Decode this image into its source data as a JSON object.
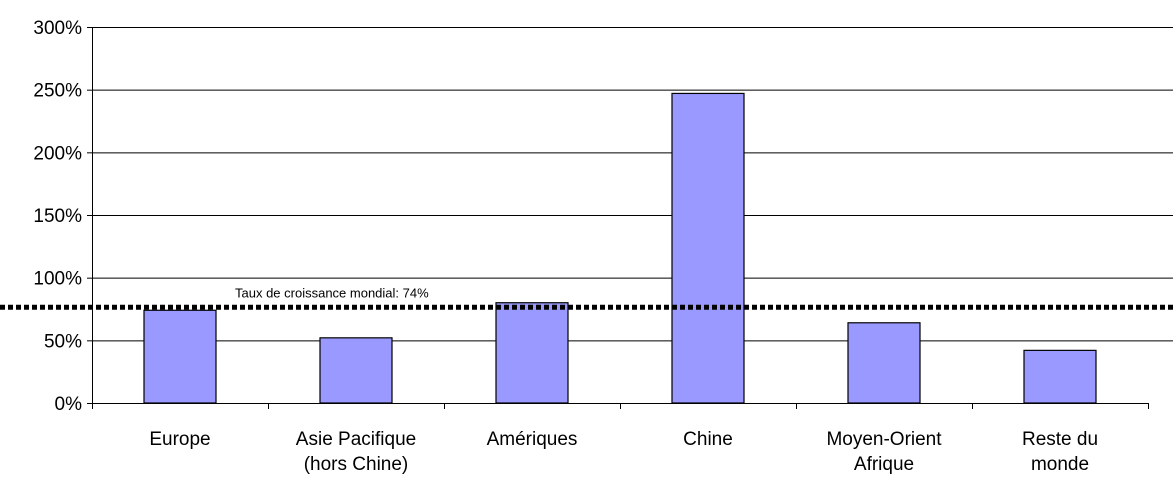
{
  "chart_data": {
    "type": "bar",
    "title": "",
    "xlabel": "",
    "ylabel": "",
    "categories": [
      [
        "Europe"
      ],
      [
        "Asie Pacifique",
        "(hors Chine)"
      ],
      [
        "Amériques"
      ],
      [
        "Chine"
      ],
      [
        "Moyen-Orient",
        "Afrique"
      ],
      [
        "Reste du",
        "monde"
      ]
    ],
    "values": [
      74,
      52,
      80,
      247,
      64,
      42
    ],
    "ylim": [
      0,
      300
    ],
    "yticks": [
      0,
      50,
      100,
      150,
      200,
      250,
      300
    ],
    "y_tick_suffix": "%",
    "grid": true,
    "legend": "none",
    "reference_line": {
      "value": 74,
      "label": "Taux de croissance mondial: 74%",
      "style": "dotted"
    },
    "colors": {
      "bar_fill": "#9999ff",
      "bar_stroke": "#000000",
      "grid": "#000000",
      "reference_line": "#000000"
    }
  }
}
